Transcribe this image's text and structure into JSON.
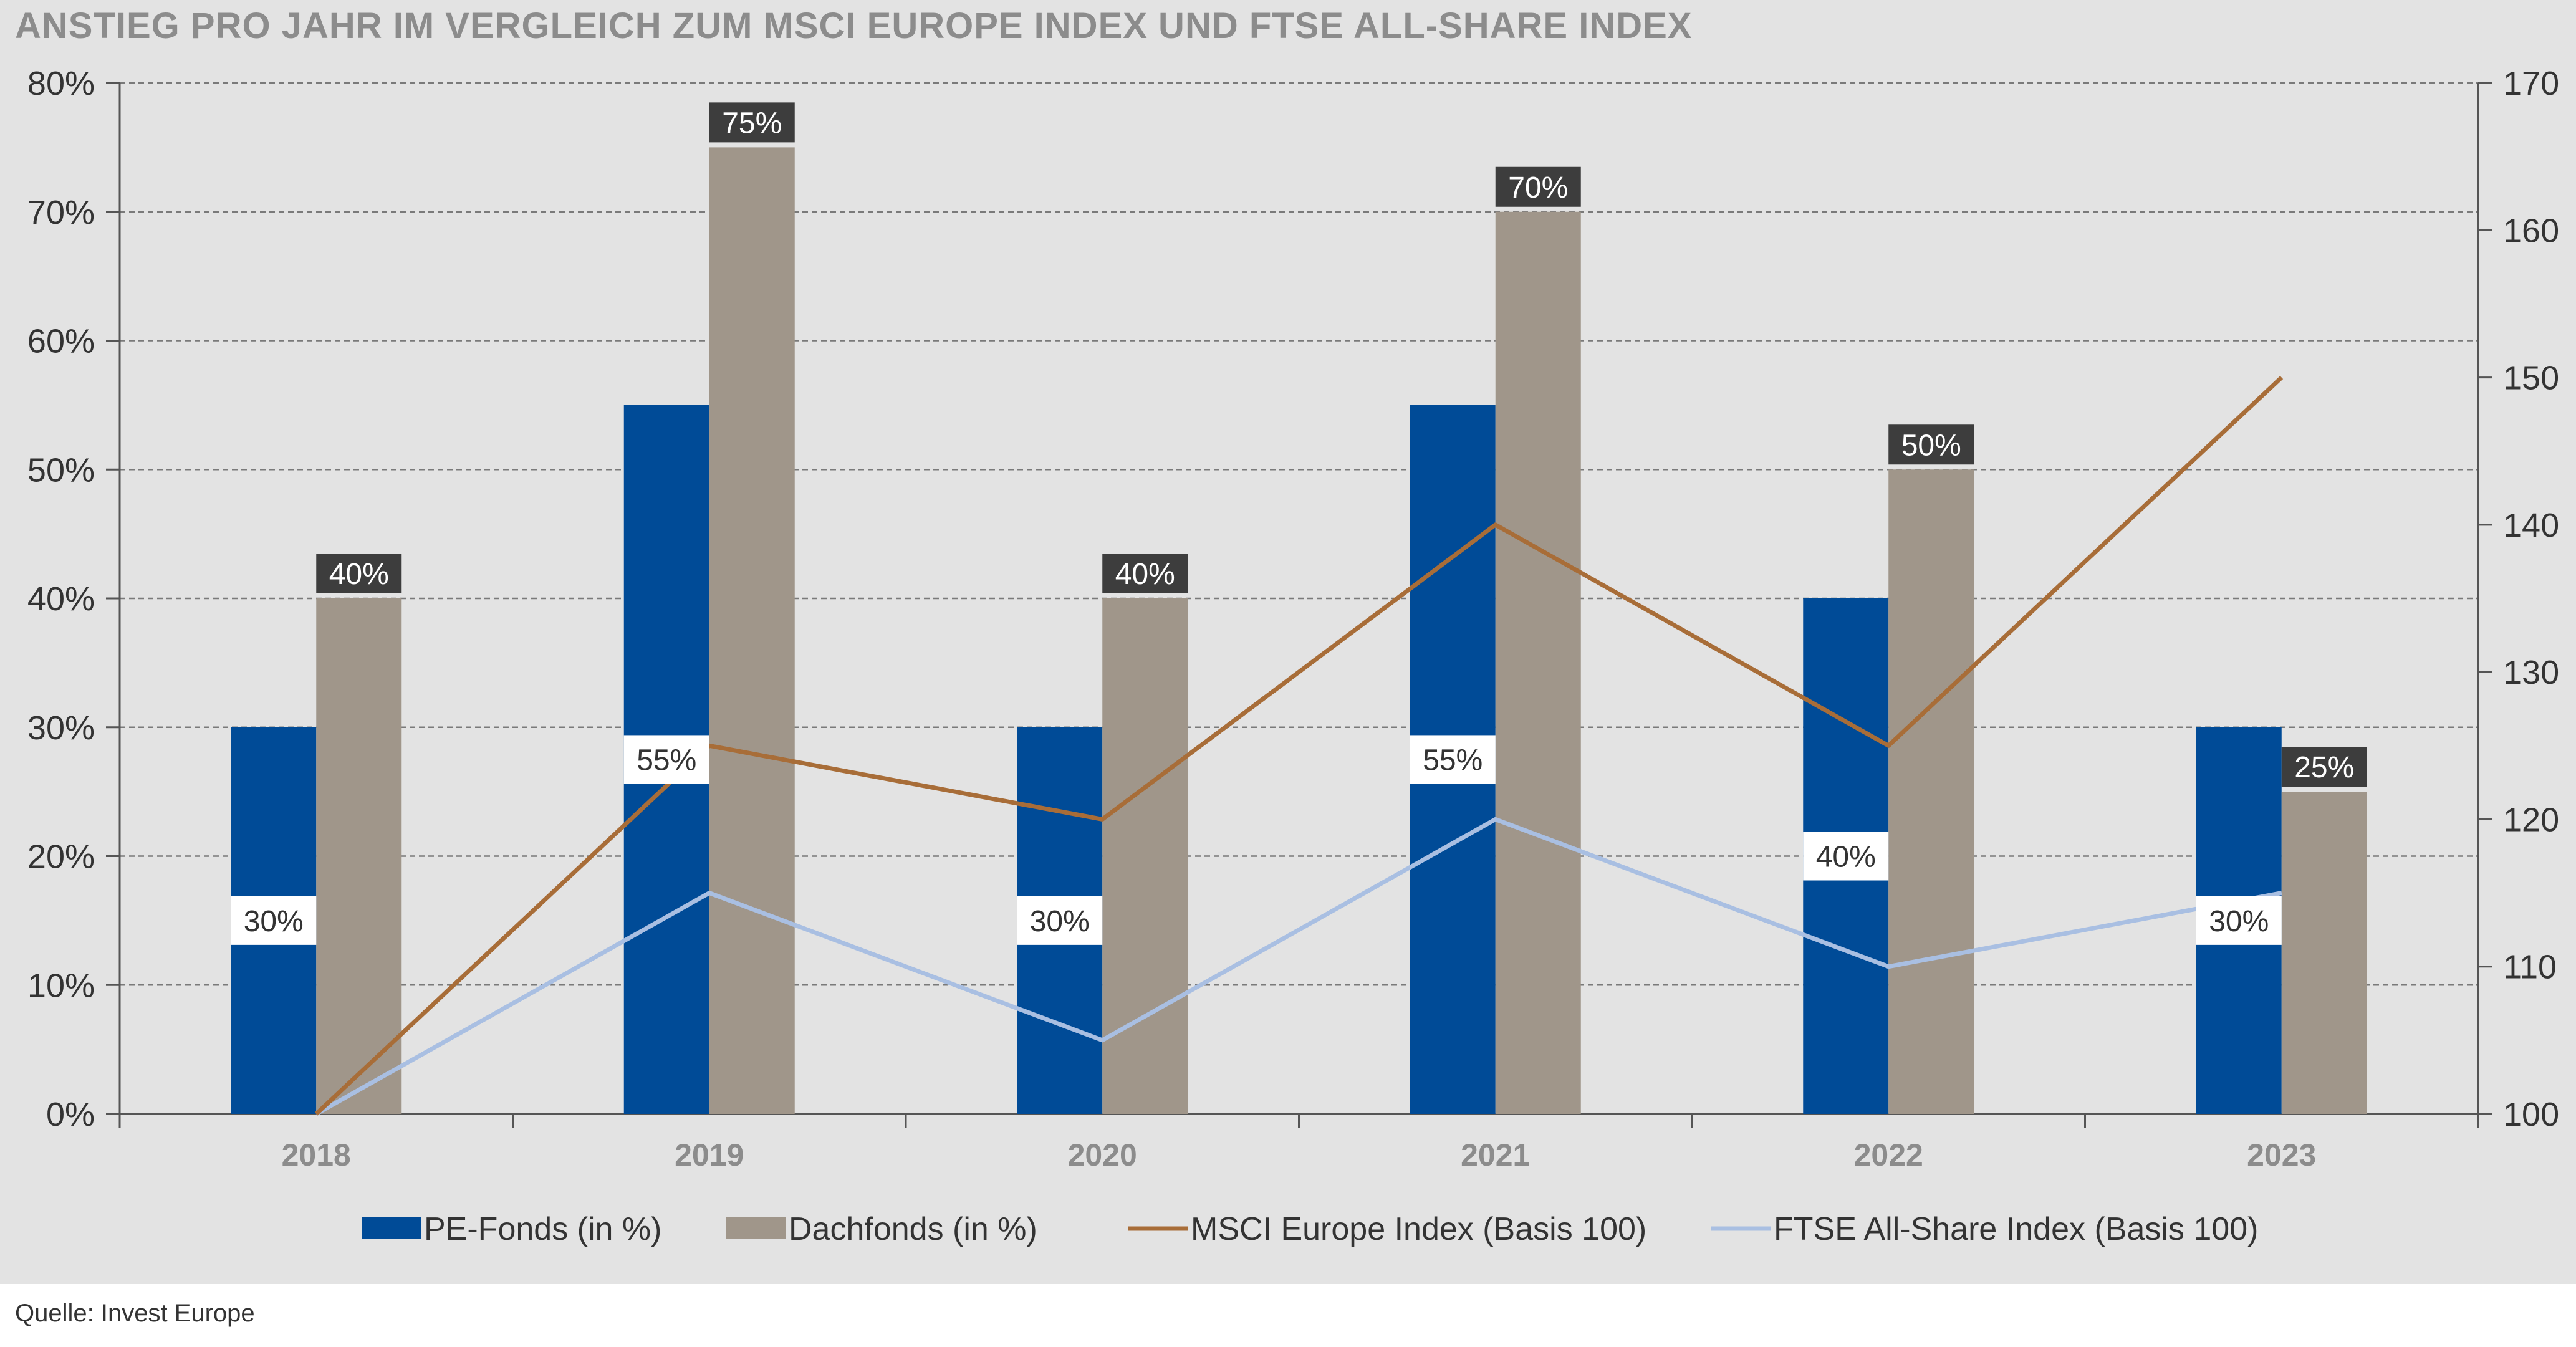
{
  "title": "ANSTIEG PRO JAHR IM VERGLEICH ZUM MSCI EUROPE INDEX UND FTSE ALL-SHARE INDEX",
  "source": "Quelle: Invest Europe",
  "colors": {
    "pe": "#004b97",
    "dach": "#a0968a",
    "msci": "#a86d38",
    "ftse": "#a9bfe2",
    "background": "#e3e3e3",
    "label_dark": "#3d3d3d"
  },
  "chart_data": {
    "type": "bar",
    "categories": [
      "2018",
      "2019",
      "2020",
      "2021",
      "2022",
      "2023"
    ],
    "y_left": {
      "ylim": [
        0,
        80
      ],
      "ticks": [
        0,
        10,
        20,
        30,
        40,
        50,
        60,
        70,
        80
      ],
      "tick_labels": [
        "0%",
        "10%",
        "20%",
        "30%",
        "40%",
        "50%",
        "60%",
        "70%",
        "80%"
      ]
    },
    "y_right": {
      "ylim": [
        100,
        170
      ],
      "ticks": [
        100,
        110,
        120,
        130,
        140,
        150,
        160,
        170
      ],
      "tick_labels": [
        "100",
        "110",
        "120",
        "130",
        "140",
        "150",
        "160",
        "170"
      ]
    },
    "grid": true,
    "legend_position": "bottom",
    "series": [
      {
        "name": "PE-Fonds (in %)",
        "type": "bar",
        "axis": "left",
        "values": [
          30,
          55,
          30,
          55,
          40,
          30
        ],
        "labels": [
          "30%",
          "55%",
          "30%",
          "55%",
          "40%",
          "30%"
        ]
      },
      {
        "name": "Dachfonds  (in %)",
        "type": "bar",
        "axis": "left",
        "values": [
          40,
          75,
          40,
          70,
          50,
          25
        ],
        "labels": [
          "40%",
          "75%",
          "40%",
          "70%",
          "50%",
          "25%"
        ]
      },
      {
        "name": "MSCI Europe Index (Basis 100)",
        "type": "line",
        "axis": "right",
        "values": [
          100,
          125,
          120,
          140,
          125,
          150
        ]
      },
      {
        "name": "FTSE All-Share Index  (Basis 100)",
        "type": "line",
        "axis": "right",
        "values": [
          100,
          115,
          105,
          120,
          110,
          115
        ]
      }
    ]
  }
}
